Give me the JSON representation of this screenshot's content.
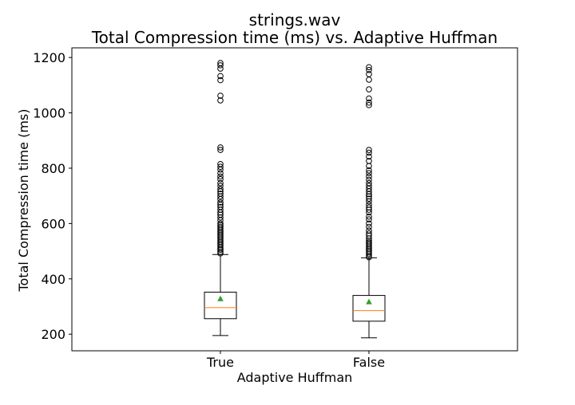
{
  "chart_data": {
    "type": "box",
    "title_line1": "strings.wav",
    "title_line2": "Total Compression time (ms) vs. Adaptive Huffman",
    "xlabel": "Adaptive Huffman",
    "ylabel": "Total Compression time (ms)",
    "ylim": [
      140,
      1235
    ],
    "yticks": [
      200,
      400,
      600,
      800,
      1000,
      1200
    ],
    "categories": [
      "True",
      "False"
    ],
    "grid": false,
    "colors": {
      "box": "#000000",
      "median": "#ff7f0e",
      "mean": "#2ca02c",
      "outlier": "#000000"
    },
    "boxes": [
      {
        "category": "True",
        "whisker_low": 195,
        "q1": 256,
        "median": 296,
        "q3": 352,
        "whisker_high": 488,
        "mean": 328,
        "outliers": [
          492,
          498,
          505,
          510,
          516,
          522,
          528,
          534,
          540,
          546,
          552,
          558,
          564,
          570,
          576,
          582,
          588,
          594,
          600,
          612,
          622,
          632,
          640,
          650,
          660,
          668,
          676,
          688,
          698,
          708,
          716,
          724,
          736,
          746,
          760,
          770,
          782,
          795,
          805,
          815,
          866,
          875,
          1045,
          1062,
          1118,
          1133,
          1160,
          1172,
          1180
        ]
      },
      {
        "category": "False",
        "whisker_low": 187,
        "q1": 247,
        "median": 285,
        "q3": 340,
        "whisker_high": 476,
        "mean": 317,
        "outliers": [
          478,
          483,
          490,
          496,
          502,
          508,
          514,
          520,
          526,
          532,
          538,
          546,
          556,
          564,
          575,
          588,
          600,
          615,
          625,
          640,
          650,
          658,
          668,
          680,
          690,
          698,
          706,
          716,
          726,
          736,
          746,
          758,
          770,
          782,
          792,
          808,
          826,
          842,
          856,
          866,
          1028,
          1037,
          1052,
          1085,
          1120,
          1140,
          1155,
          1165
        ]
      }
    ]
  }
}
